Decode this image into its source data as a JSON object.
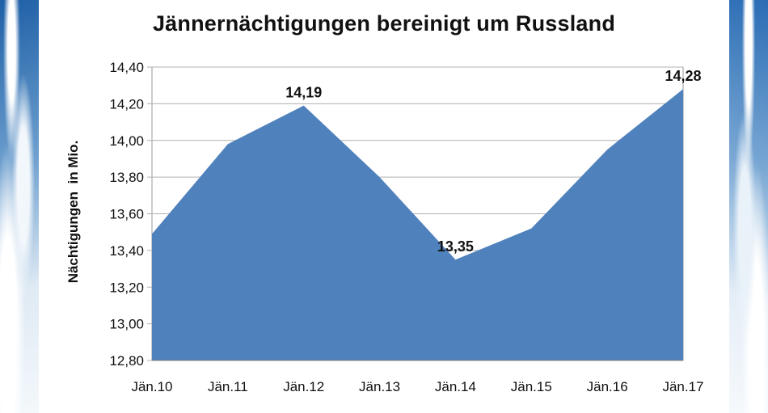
{
  "colors": {
    "area_fill": "#4f81bd",
    "grid": "#b0b0b0",
    "panel_bg": "#ffffff"
  },
  "chart_data": {
    "type": "area",
    "title": "Jännernächtigungen bereinigt um Russland",
    "ylabel": "Nächtigungen  in Mio.",
    "xlabel": "",
    "categories": [
      "Jän.10",
      "Jän.11",
      "Jän.12",
      "Jän.13",
      "Jän.14",
      "Jän.15",
      "Jän.16",
      "Jän.17"
    ],
    "series": [
      {
        "values": [
          13.49,
          13.98,
          14.19,
          13.8,
          13.35,
          13.52,
          13.95,
          14.28
        ]
      }
    ],
    "data_labels": [
      {
        "index": 2,
        "text": "14,19"
      },
      {
        "index": 4,
        "text": "13,35"
      },
      {
        "index": 7,
        "text": "14,28"
      }
    ],
    "ylim": [
      12.8,
      14.4
    ],
    "yticks": [
      "12,80",
      "13,00",
      "13,20",
      "13,40",
      "13,60",
      "13,80",
      "14,00",
      "14,20",
      "14,40"
    ],
    "grid": true,
    "legend": "none"
  }
}
